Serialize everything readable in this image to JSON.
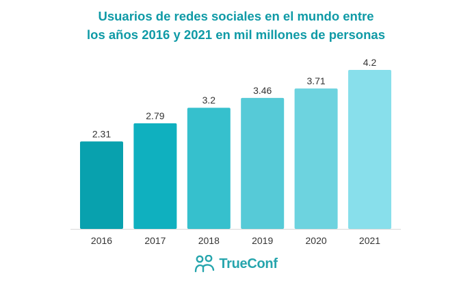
{
  "chart_data": {
    "type": "bar",
    "title_lines": [
      "Usuarios de redes sociales en el mundo entre",
      "los años 2016 y 2021 en mil millones de personas"
    ],
    "categories": [
      "2016",
      "2017",
      "2018",
      "2019",
      "2020",
      "2021"
    ],
    "values": [
      2.31,
      2.79,
      3.2,
      3.46,
      3.71,
      4.2
    ],
    "value_labels": [
      "2.31",
      "2.79",
      "3.2",
      "3.46",
      "3.71",
      "4.2"
    ],
    "bar_colors": [
      "#08a1ae",
      "#0fb0bf",
      "#36c0cd",
      "#56cad7",
      "#6dd3df",
      "#88dfeb"
    ],
    "xlabel": "",
    "ylabel": "",
    "ylim": [
      0,
      4.2
    ],
    "grid": false,
    "legend": "none"
  },
  "brand": {
    "name": "TrueConf",
    "logo_icon": "people-icon",
    "color": "#26a5ad"
  },
  "colors": {
    "title": "#0f9aa6",
    "axis": "#d9d9d9",
    "label": "#333333"
  }
}
